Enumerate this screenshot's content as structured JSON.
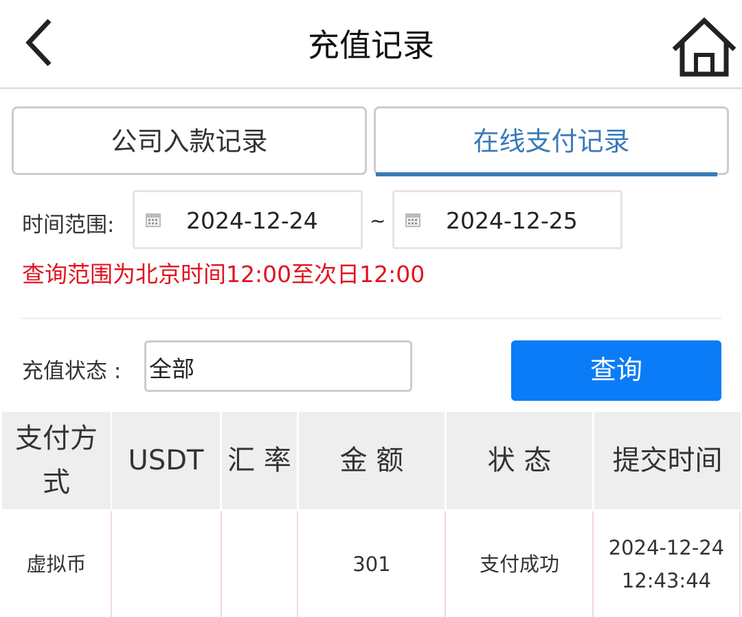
{
  "header": {
    "title": "充值记录",
    "back_icon": "chevron-left-icon",
    "home_icon": "home-icon"
  },
  "tabs": [
    {
      "label": "公司入款记录",
      "active": false
    },
    {
      "label": "在线支付记录",
      "active": true
    }
  ],
  "accent": "#3a7ab8",
  "filters": {
    "time_range_label": "时间范围:",
    "start_date": "2024-12-24",
    "separator": "~",
    "end_date": "2024-12-25",
    "notice": "查询范围为北京时间12:00至次日12:00",
    "status_label": "充值状态 :",
    "status_value": "全部",
    "query_button": "查询"
  },
  "table": {
    "columns": [
      "支付方式",
      "USDT",
      "汇 率",
      "金 额",
      "状 态",
      "提交时间"
    ],
    "rows": [
      {
        "method": "虚拟币",
        "usdt": "",
        "rate": "",
        "amount": "301",
        "status": "支付成功",
        "time": "2024-12-24 12:43:44"
      }
    ]
  }
}
